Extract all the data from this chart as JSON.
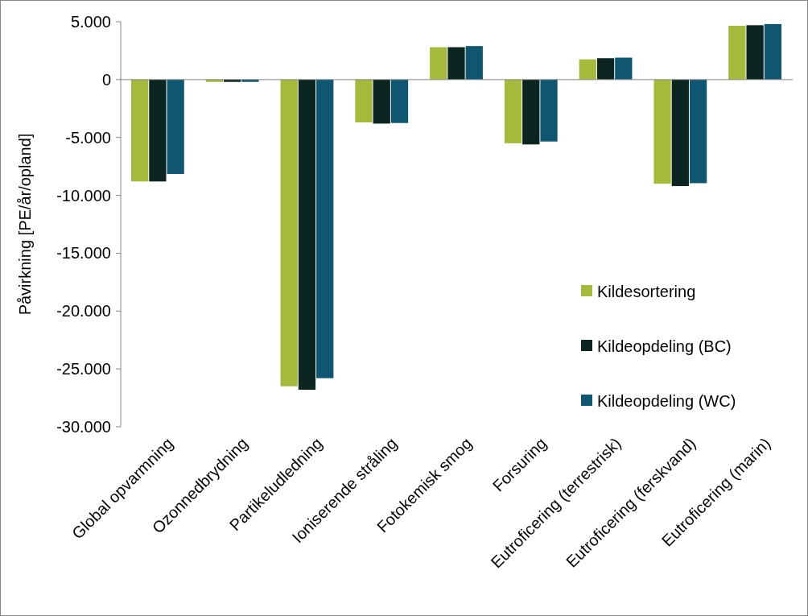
{
  "chart_data": {
    "type": "bar",
    "ylabel": "Påvirkning [PE/år/opland]",
    "categories": [
      "Global opvarmning",
      "Ozonnedbrydning",
      "Partikeludledning",
      "Ioniserende stråling",
      "Fotokemisk smog",
      "Forsuring",
      "Eutroficering (terrestrisk)",
      "Eutroficering (ferskvand)",
      "Eutroficering (marin)"
    ],
    "series": [
      {
        "name": "Kildesortering",
        "color": "#a5b93a",
        "values": [
          -8800,
          -200,
          -26500,
          -3700,
          2800,
          -5500,
          1750,
          -9000,
          4650
        ]
      },
      {
        "name": "Kildeopdeling (BC)",
        "color": "#0b2620",
        "values": [
          -8800,
          -200,
          -26800,
          -3800,
          2800,
          -5600,
          1850,
          -9200,
          4700
        ]
      },
      {
        "name": "Kildeopdeling (WC)",
        "color": "#0f5670",
        "values": [
          -8150,
          -200,
          -25800,
          -3750,
          2900,
          -5350,
          1900,
          -8950,
          4800
        ]
      }
    ],
    "ylim": [
      -30000,
      5000
    ],
    "yticks": [
      {
        "value": 5000,
        "label": "5.000"
      },
      0,
      {
        "value": -5000,
        "label": "-5.000"
      },
      {
        "value": -10000,
        "label": "-10.000"
      },
      {
        "value": -15000,
        "label": "-15.000"
      },
      {
        "value": -20000,
        "label": "-20.000"
      },
      {
        "value": -25000,
        "label": "-25.000"
      },
      {
        "value": -30000,
        "label": "-30.000"
      }
    ],
    "legend": "right"
  }
}
